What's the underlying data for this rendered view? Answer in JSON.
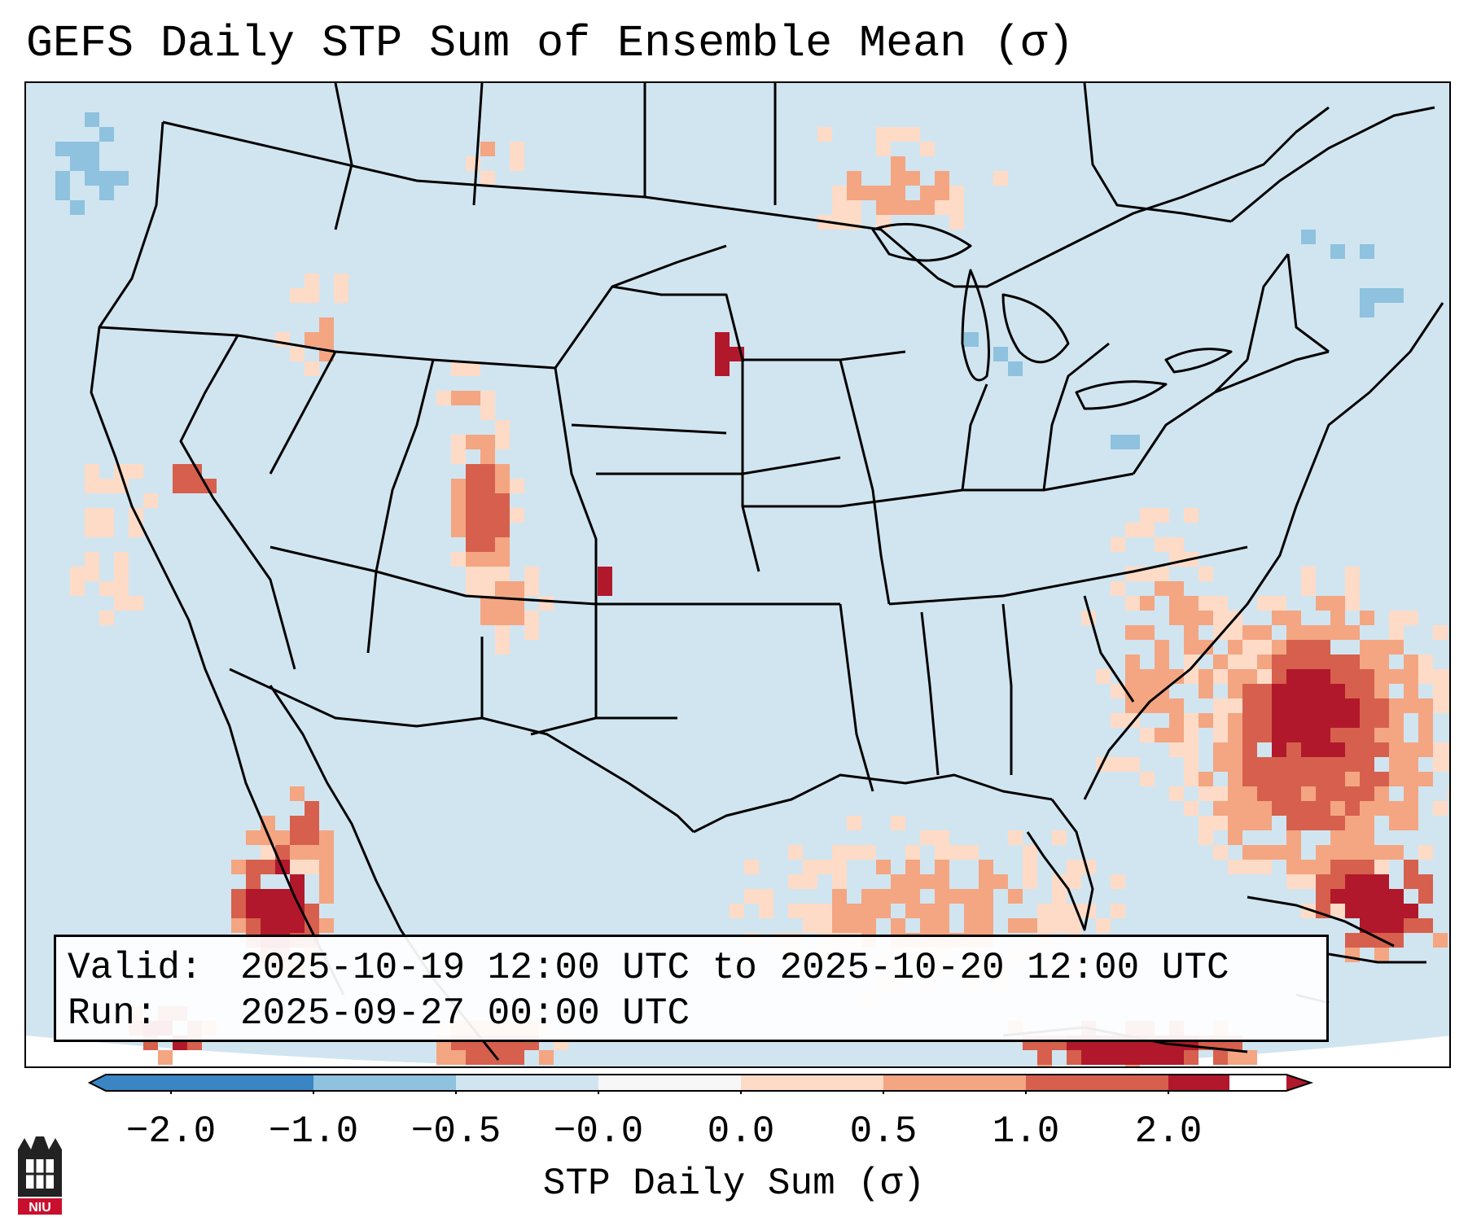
{
  "title": "GEFS Daily STP Sum of Ensemble Mean (σ)",
  "info": {
    "valid_label": "Valid:",
    "valid_value": "2025-10-19 12:00 UTC to 2025-10-20 12:00 UTC",
    "run_label": "Run:",
    "run_value": "2025-09-27 00:00 UTC"
  },
  "colorbar": {
    "label": "STP Daily Sum (σ)",
    "ticks": [
      "−2.0",
      "−1.0",
      "−0.5",
      "−0.0",
      "0.0",
      "0.5",
      "1.0",
      "2.0"
    ],
    "colors": [
      "#3a85c4",
      "#8ec2de",
      "#d1e5f0",
      "#f7f7f7",
      "#fddbc7",
      "#f4a582",
      "#d6604d",
      "#b2182b"
    ]
  },
  "map_colors": {
    "land_background": "#d1e5f0",
    "ocean_background": "#d1e5f0",
    "borders": "#000000"
  },
  "logo": {
    "text": "NIU",
    "color": "#c8102e"
  }
}
